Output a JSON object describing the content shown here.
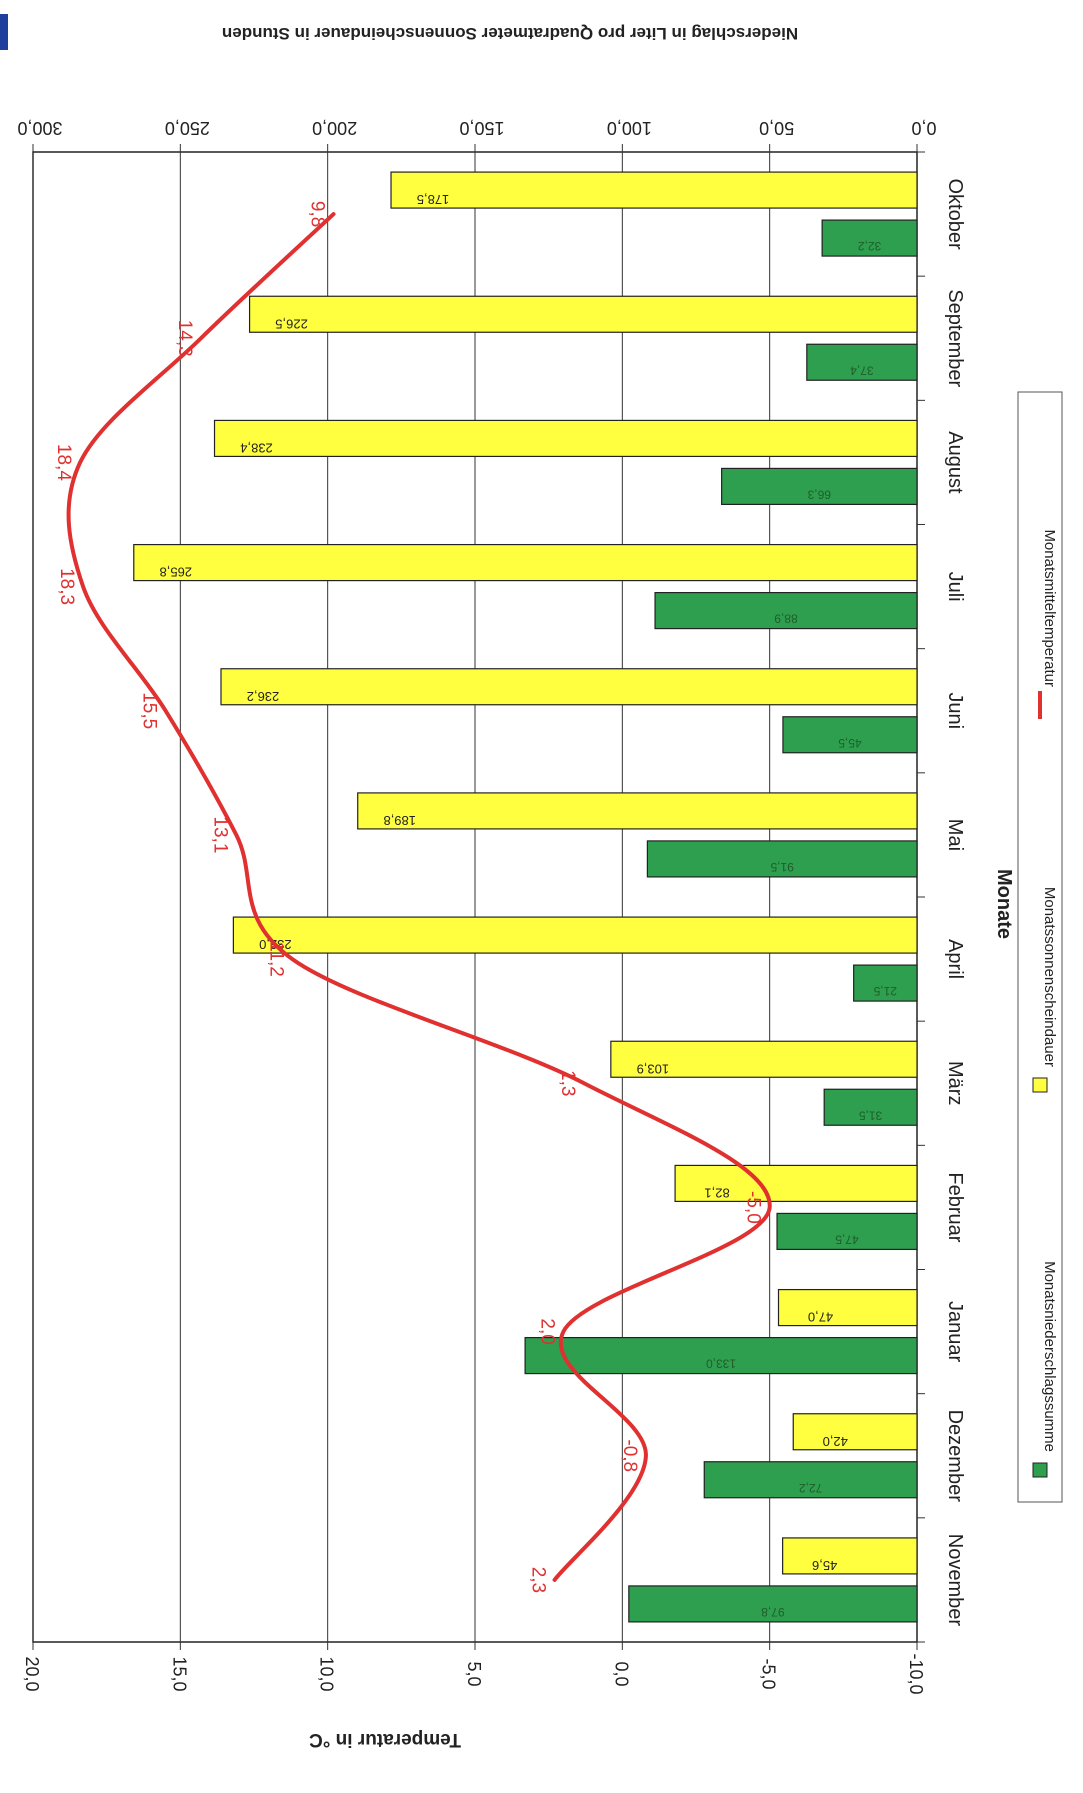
{
  "chart_data": {
    "type": "bar",
    "xlabel": "Monate",
    "ylabel_left": "Temperatur in °C",
    "ylabel_right": "Niederschlag in Liter pro Quadratmeter Sonnenscheindauer in Stunden",
    "categories": [
      "November",
      "Dezember",
      "Januar",
      "Februar",
      "März",
      "April",
      "Mai",
      "Juni",
      "Juli",
      "August",
      "September",
      "Oktober"
    ],
    "primary_axis": {
      "min": 0,
      "max": 300,
      "ticks": [
        "0,0",
        "50,0",
        "100,0",
        "150,0",
        "200,0",
        "250,0",
        "300,0"
      ]
    },
    "secondary_axis": {
      "min": -10,
      "max": 20,
      "ticks": [
        "-10,0",
        "-5,0",
        "0,0",
        "5,0",
        "10,0",
        "15,0",
        "20,0"
      ]
    },
    "series": [
      {
        "name": "Monatsniederschlagssumme",
        "kind": "bar",
        "axis": "primary",
        "color": "#2e9e4f",
        "values": [
          97.8,
          72.2,
          133.0,
          47.5,
          31.5,
          21.5,
          91.5,
          45.5,
          88.9,
          66.3,
          37.4,
          32.2
        ],
        "labels": [
          "97,8",
          "72,2",
          "133,0",
          "47,5",
          "31,5",
          "21,5",
          "91,5",
          "45,5",
          "88,9",
          "66,3",
          "37,4",
          "32,2"
        ]
      },
      {
        "name": "Monatssonnenscheindauer",
        "kind": "bar",
        "axis": "primary",
        "color": "#ffff40",
        "values": [
          45.6,
          42.0,
          47.0,
          82.1,
          103.9,
          232.0,
          189.8,
          236.2,
          265.8,
          238.4,
          226.5,
          178.5
        ],
        "labels": [
          "45,6",
          "42,0",
          "47,0",
          "82,1",
          "103,9",
          "232,0",
          "189,8",
          "236,2",
          "265,8",
          "238,4",
          "226,5",
          "178,5"
        ]
      },
      {
        "name": "Monatsmitteltemperatur",
        "kind": "line",
        "axis": "secondary",
        "color": "#e03030",
        "values": [
          2.3,
          -0.8,
          2.0,
          -5.0,
          1.3,
          11.2,
          13.1,
          15.5,
          18.3,
          18.4,
          14.3,
          9.8
        ],
        "labels": [
          "2,3",
          "-0,8",
          "2,0",
          "-5,0",
          "1,3",
          "11,2",
          "13,1",
          "15,5",
          "18,3",
          "18,4",
          "14,3",
          "9,8"
        ]
      }
    ],
    "grid": true,
    "legend_position": "bottom",
    "orientation": "rotated 90° clockwise (bars extend leftwards)"
  }
}
